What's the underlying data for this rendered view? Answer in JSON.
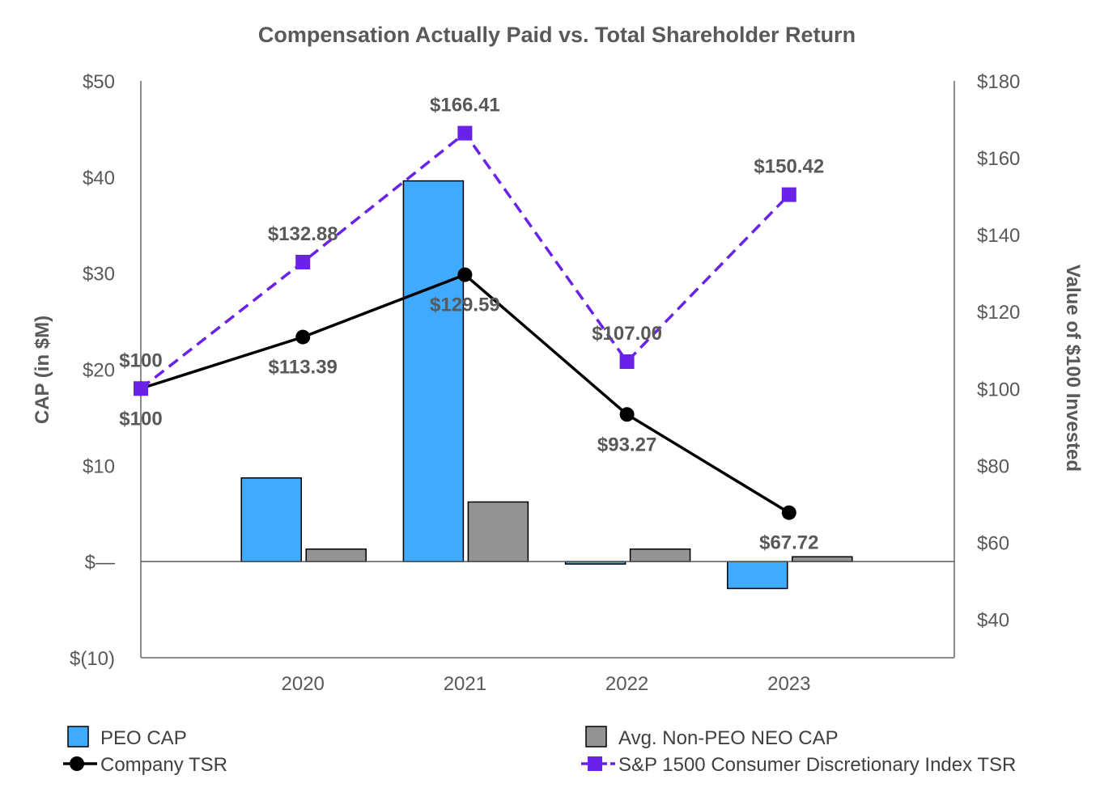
{
  "chart_data": {
    "type": "bar",
    "title": "Compensation Actually Paid vs. Total Shareholder Return",
    "categories": [
      "",
      "2020",
      "2021",
      "2022",
      "2023",
      ""
    ],
    "y_left": {
      "label": "CAP (in $M)",
      "range": [
        -10,
        50
      ],
      "ticks": [
        {
          "value": 50,
          "label": "$50"
        },
        {
          "value": 40,
          "label": "$40"
        },
        {
          "value": 30,
          "label": "$30"
        },
        {
          "value": 20,
          "label": "$20"
        },
        {
          "value": 10,
          "label": "$10"
        },
        {
          "value": 0,
          "label": "$—"
        },
        {
          "value": -10,
          "label": "$(10)"
        }
      ]
    },
    "y_right": {
      "label": "Value of $100 Invested",
      "range": [
        30,
        180
      ],
      "ticks": [
        {
          "value": 180,
          "label": "$180"
        },
        {
          "value": 160,
          "label": "$160"
        },
        {
          "value": 140,
          "label": "$140"
        },
        {
          "value": 120,
          "label": "$120"
        },
        {
          "value": 100,
          "label": "$100"
        },
        {
          "value": 80,
          "label": "$80"
        },
        {
          "value": 60,
          "label": "$60"
        },
        {
          "value": 40,
          "label": "$40"
        }
      ]
    },
    "bar_series": [
      {
        "name": "PEO CAP",
        "color": "#3FAAFF",
        "values": [
          null,
          8.7,
          39.6,
          -0.2,
          -2.8,
          null
        ]
      },
      {
        "name": "Avg. Non-PEO NEO CAP",
        "color": "#939393",
        "values": [
          null,
          1.3,
          6.2,
          1.3,
          0.5,
          null
        ]
      }
    ],
    "line_series": [
      {
        "name": "Company TSR",
        "color": "#000000",
        "marker": "circle",
        "dashed": false,
        "values": [
          100,
          113.39,
          129.59,
          93.27,
          67.72,
          null
        ],
        "labels": [
          "$100",
          "$113.39",
          "$129.59",
          "$93.27",
          "$67.72",
          ""
        ],
        "label_pos": [
          "below",
          "below",
          "below",
          "below",
          "below",
          ""
        ]
      },
      {
        "name": "S&P 1500 Consumer Discretionary Index TSR",
        "color": "#6A21E8",
        "marker": "square",
        "dashed": true,
        "values": [
          100,
          132.88,
          166.41,
          107.0,
          150.42,
          null
        ],
        "labels": [
          "$100",
          "$132.88",
          "$166.41",
          "$107.00",
          "$150.42",
          ""
        ],
        "label_pos": [
          "above",
          "above",
          "above",
          "above",
          "above",
          ""
        ]
      }
    ],
    "legend": [
      {
        "name": "PEO CAP",
        "kind": "bar",
        "color": "#3FAAFF"
      },
      {
        "name": "Avg. Non-PEO NEO CAP",
        "kind": "bar",
        "color": "#939393"
      },
      {
        "name": "Company TSR",
        "kind": "line-circle",
        "color": "#000000"
      },
      {
        "name": "S&P 1500 Consumer Discretionary Index TSR",
        "kind": "line-square",
        "color": "#6A21E8"
      }
    ],
    "legend_position": "bottom"
  }
}
